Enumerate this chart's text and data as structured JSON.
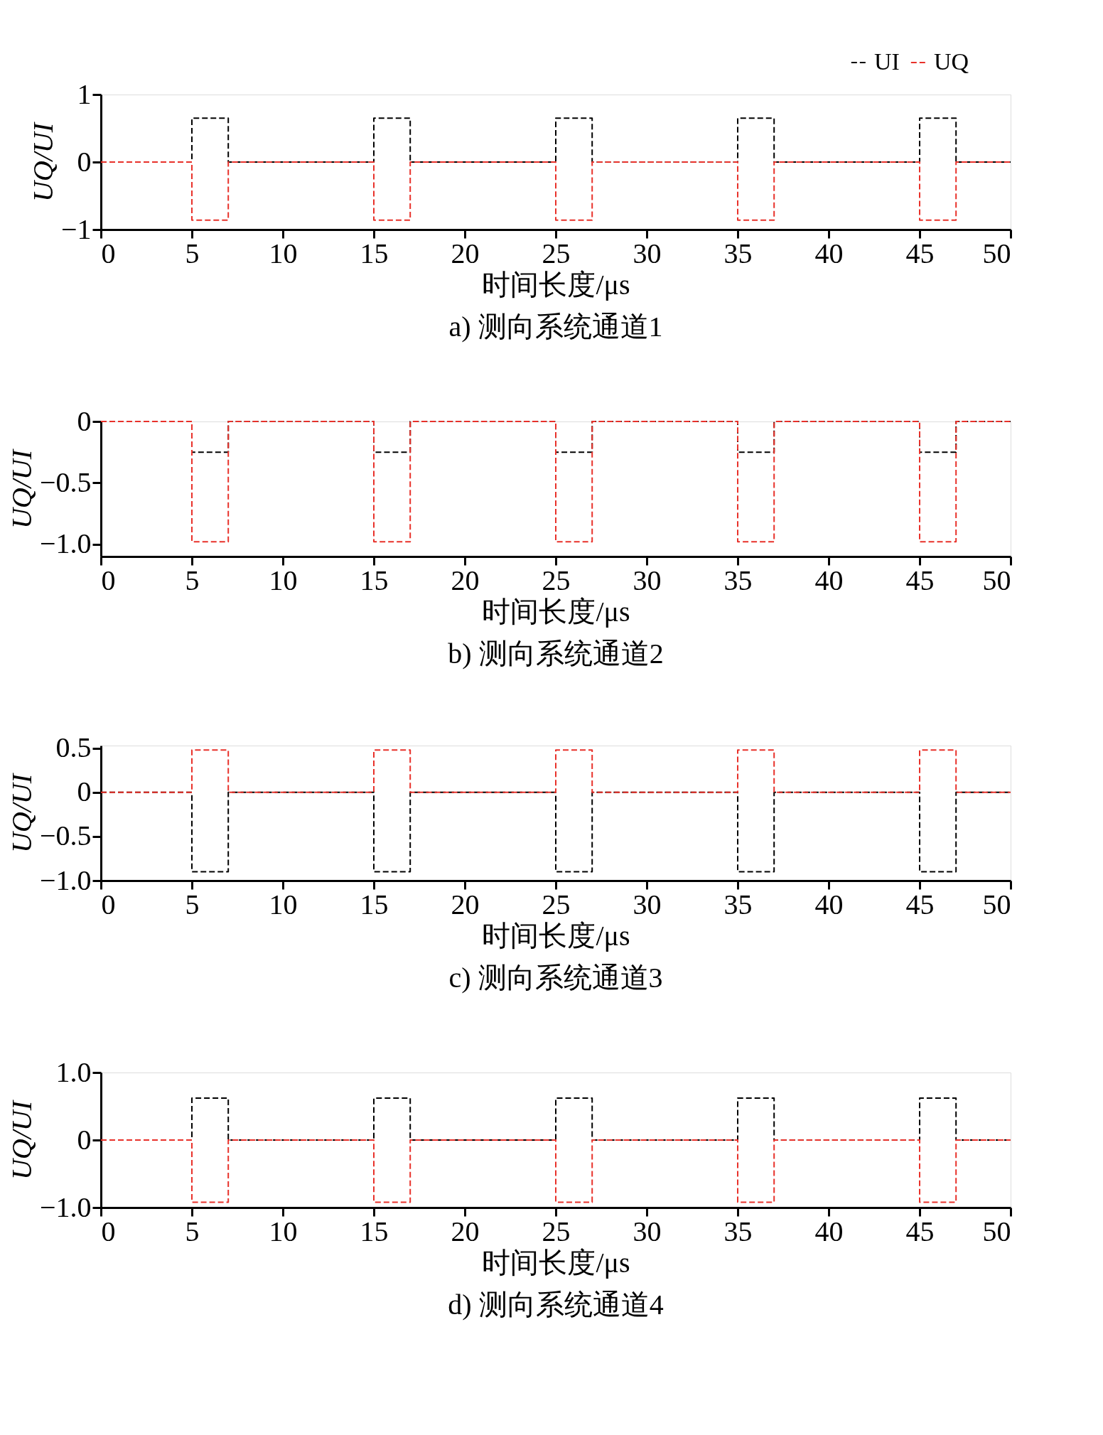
{
  "chart_data": [
    {
      "type": "line",
      "title": "a) 测向系统通道1",
      "xlabel": "时间长度/μs",
      "ylabel": "UQ/UI",
      "legend": "top right",
      "line_style": "dashed",
      "grid": false,
      "x": [
        0,
        5,
        5,
        7,
        7,
        15,
        15,
        17,
        17,
        25,
        25,
        27,
        27,
        35,
        35,
        37,
        37,
        45,
        45,
        47,
        47,
        50
      ],
      "series": [
        {
          "name": "UI",
          "color": "#000000",
          "values": [
            0,
            0,
            0.65,
            0.65,
            0,
            0,
            0.65,
            0.65,
            0,
            0,
            0.65,
            0.65,
            0,
            0,
            0.65,
            0.65,
            0,
            0,
            0.65,
            0.65,
            0,
            0
          ]
        },
        {
          "name": "UQ",
          "color": "#e8312a",
          "values": [
            0,
            0,
            -0.86,
            -0.86,
            0,
            0,
            -0.86,
            -0.86,
            0,
            0,
            -0.86,
            -0.86,
            0,
            0,
            -0.86,
            -0.86,
            0,
            0,
            -0.86,
            -0.86,
            0,
            0
          ]
        }
      ],
      "xlim": [
        0,
        50
      ],
      "xticks": [
        0,
        5,
        10,
        15,
        20,
        25,
        30,
        35,
        40,
        45,
        50
      ],
      "ylim": [
        -1,
        1
      ],
      "yticks": [
        {
          "value": -1,
          "label": "−1"
        },
        0,
        1
      ]
    },
    {
      "type": "line",
      "title": "b) 测向系统通道2",
      "xlabel": "时间长度/μs",
      "ylabel": "UQ/UI",
      "line_style": "dashed",
      "grid": false,
      "x": [
        0,
        5,
        5,
        7,
        7,
        15,
        15,
        17,
        17,
        25,
        25,
        27,
        27,
        35,
        35,
        37,
        37,
        45,
        45,
        47,
        47,
        50
      ],
      "series": [
        {
          "color": "#000000",
          "values": [
            0,
            0,
            -0.25,
            -0.25,
            0,
            0,
            -0.25,
            -0.25,
            0,
            0,
            -0.25,
            -0.25,
            0,
            0,
            -0.25,
            -0.25,
            0,
            0,
            -0.25,
            -0.25,
            0,
            0
          ]
        },
        {
          "color": "#e8312a",
          "values": [
            0,
            0,
            -0.98,
            -0.98,
            0,
            0,
            -0.98,
            -0.98,
            0,
            0,
            -0.98,
            -0.98,
            0,
            0,
            -0.98,
            -0.98,
            0,
            0,
            -0.98,
            -0.98,
            0,
            0
          ]
        }
      ],
      "xlim": [
        0,
        50
      ],
      "xticks": [
        0,
        5,
        10,
        15,
        20,
        25,
        30,
        35,
        40,
        45,
        50
      ],
      "ylim": [
        -1.1,
        0
      ],
      "yticks": [
        {
          "value": -1,
          "label": "−1.0"
        },
        {
          "value": -0.5,
          "label": "−0.5"
        },
        0
      ]
    },
    {
      "type": "line",
      "title": "c) 测向系统通道3",
      "xlabel": "时间长度/μs",
      "ylabel": "UQ/UI",
      "line_style": "dashed",
      "grid": false,
      "x": [
        0,
        5,
        5,
        7,
        7,
        15,
        15,
        17,
        17,
        25,
        25,
        27,
        27,
        35,
        35,
        37,
        37,
        45,
        45,
        47,
        47,
        50
      ],
      "series": [
        {
          "color": "#000000",
          "values": [
            0,
            0,
            -0.9,
            -0.9,
            0,
            0,
            -0.9,
            -0.9,
            0,
            0,
            -0.9,
            -0.9,
            0,
            0,
            -0.9,
            -0.9,
            0,
            0,
            -0.9,
            -0.9,
            0,
            0
          ]
        },
        {
          "color": "#e8312a",
          "values": [
            0,
            0,
            0.48,
            0.48,
            0,
            0,
            0.48,
            0.48,
            0,
            0,
            0.48,
            0.48,
            0,
            0,
            0.48,
            0.48,
            0,
            0,
            0.48,
            0.48,
            0,
            0
          ]
        }
      ],
      "xlim": [
        0,
        50
      ],
      "xticks": [
        0,
        5,
        10,
        15,
        20,
        25,
        30,
        35,
        40,
        45,
        50
      ],
      "ylim": [
        -1.0,
        0.53
      ],
      "yticks": [
        {
          "value": -1,
          "label": "−1.0"
        },
        {
          "value": -0.5,
          "label": "−0.5"
        },
        0,
        0.5
      ]
    },
    {
      "type": "line",
      "title": "d) 测向系统通道4",
      "xlabel": "时间长度/μs",
      "ylabel": "UQ/UI",
      "line_style": "dashed",
      "grid": false,
      "x": [
        0,
        5,
        5,
        7,
        7,
        15,
        15,
        17,
        17,
        25,
        25,
        27,
        27,
        35,
        35,
        37,
        37,
        45,
        45,
        47,
        47,
        50
      ],
      "series": [
        {
          "color": "#000000",
          "values": [
            0,
            0,
            0.62,
            0.62,
            0,
            0,
            0.62,
            0.62,
            0,
            0,
            0.62,
            0.62,
            0,
            0,
            0.62,
            0.62,
            0,
            0,
            0.62,
            0.62,
            0,
            0
          ]
        },
        {
          "color": "#e8312a",
          "values": [
            0,
            0,
            -0.92,
            -0.92,
            0,
            0,
            -0.92,
            -0.92,
            0,
            0,
            -0.92,
            -0.92,
            0,
            0,
            -0.92,
            -0.92,
            0,
            0,
            -0.92,
            -0.92,
            0,
            0
          ]
        }
      ],
      "xlim": [
        0,
        50
      ],
      "xticks": [
        0,
        5,
        10,
        15,
        20,
        25,
        30,
        35,
        40,
        45,
        50
      ],
      "ylim": [
        -1.0,
        1.0
      ],
      "yticks": [
        {
          "value": -1,
          "label": "−1.0"
        },
        0,
        {
          "value": 1,
          "label": "1.0"
        }
      ]
    }
  ]
}
